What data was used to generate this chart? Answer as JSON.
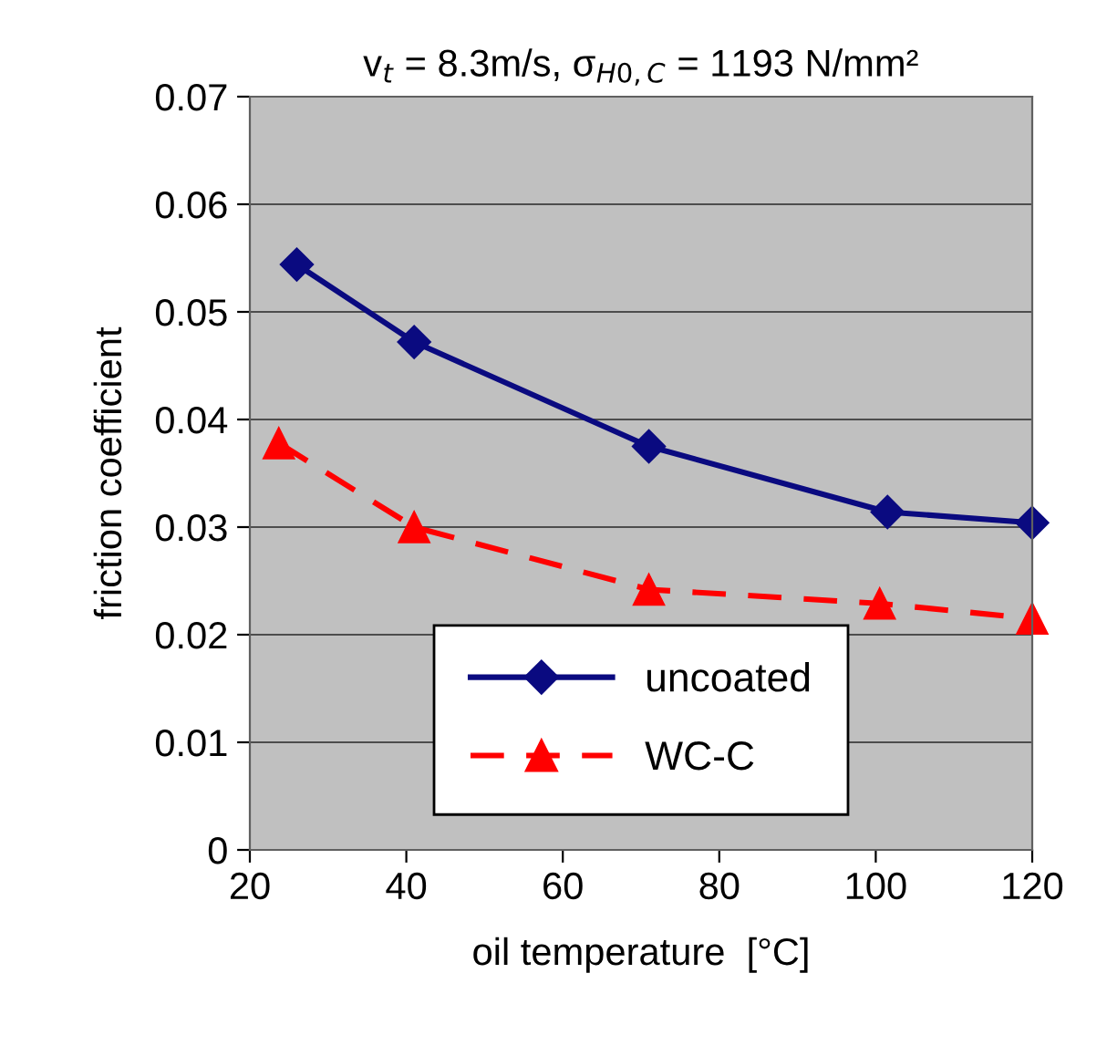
{
  "chart_data": {
    "type": "line",
    "title": "v$_{t}$ = 8.3m/s, σ$_{H0,C}$ = 1193 N/mm²",
    "xlabel": "oil temperature  [°C]",
    "ylabel": "friction coefficient",
    "xlim": [
      20,
      120
    ],
    "xticks": [
      20,
      40,
      60,
      80,
      100,
      120
    ],
    "ylim": [
      0,
      0.07
    ],
    "yticks": [
      0,
      0.01,
      0.02,
      0.03,
      0.04,
      0.05,
      0.06,
      0.07
    ],
    "grid": "y",
    "legend": "bottom",
    "series": [
      {
        "name": "uncoated",
        "color": "#0a0a80",
        "marker": "diamond",
        "line_style": "solid",
        "x": [
          26,
          41,
          71,
          101.5,
          120
        ],
        "values": [
          0.0544,
          0.0472,
          0.0375,
          0.0314,
          0.0304
        ]
      },
      {
        "name": "WC-C",
        "color": "#ff0000",
        "marker": "triangle",
        "line_style": "dashed",
        "x": [
          23.7,
          41,
          71,
          100.5,
          120
        ],
        "values": [
          0.0378,
          0.03,
          0.0242,
          0.0229,
          0.0215
        ]
      }
    ]
  }
}
